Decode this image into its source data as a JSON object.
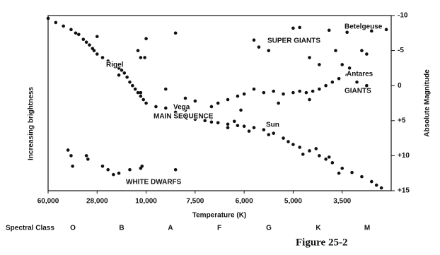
{
  "chart_data": {
    "type": "scatter",
    "xlabel": "Temperature (K)",
    "ylabel": "Increasing brightness",
    "y2label": "Absolute Magnitude",
    "color": "#111111",
    "xlim": [
      60000,
      2500
    ],
    "xticks": [
      {
        "value": 60000,
        "label": "60,000"
      },
      {
        "value": 28000,
        "label": "28,000"
      },
      {
        "value": 10000,
        "label": "10,000"
      },
      {
        "value": 7500,
        "label": "7,500"
      },
      {
        "value": 6000,
        "label": "6,000"
      },
      {
        "value": 5000,
        "label": "5,000"
      },
      {
        "value": 3500,
        "label": "3,500"
      }
    ],
    "ylim": [
      15,
      -10
    ],
    "yticks": [
      -10,
      -5,
      0,
      {
        "value": 5,
        "label": "+5"
      },
      {
        "value": 10,
        "label": "+10"
      },
      {
        "value": 15,
        "label": "+15"
      }
    ],
    "annotations": [
      "Betelgeuse",
      "SUPER GIANTS",
      "Rigel",
      "Antares",
      "GIANTS",
      "Vega",
      "MAIN SEQUENCE",
      "Sun",
      "WHITE DWARFS"
    ],
    "x": [
      60000,
      55000,
      50000,
      45000,
      42000,
      40000,
      37000,
      35000,
      33000,
      31000,
      30000,
      28000,
      26000,
      24000,
      22000,
      20000,
      19000,
      18000,
      17000,
      16000,
      15000,
      14000,
      13000,
      12000,
      11000,
      10000,
      9500,
      9000,
      8500,
      8000,
      7500,
      7200,
      7000,
      6800,
      6500,
      6200,
      6000,
      5800,
      5600,
      5400,
      5200,
      5100,
      5000,
      4800,
      4500,
      4200,
      4000,
      3800,
      3500,
      3300,
      3100,
      2900,
      2800,
      2700,
      6500,
      5500,
      4700,
      4300,
      3900,
      3600,
      8000,
      12000,
      20000,
      7000,
      6300,
      5900,
      7000,
      6800,
      6500,
      6200,
      6000,
      5800,
      5600,
      5400,
      5200,
      5000,
      4800,
      4600,
      4400,
      4200,
      4000,
      3800,
      3600,
      3400,
      3200,
      3000,
      4500,
      5300,
      6100,
      28000,
      10000,
      8500,
      13000,
      12000,
      10500,
      5000,
      4800,
      3900,
      3400,
      2900,
      2600,
      5800,
      5700,
      5500,
      4500,
      4200,
      3700,
      3100,
      3000,
      3350,
      3500,
      9000,
      8000,
      7500,
      47000,
      45000,
      44000,
      35000,
      34000,
      26000,
      24000,
      22000,
      20000,
      16000,
      12000,
      11500,
      8500
    ],
    "y": [
      -9.6,
      -9,
      -8.5,
      -8,
      -7.5,
      -7.3,
      -6.6,
      -6.2,
      -5.8,
      -5.3,
      -5,
      -4.5,
      -4,
      -3.5,
      -3,
      -2.5,
      -2.2,
      -1.8,
      -1.2,
      -0.5,
      0,
      0.5,
      1,
      1.5,
      2,
      2.5,
      3,
      3.2,
      3.8,
      4.2,
      4.8,
      5,
      5.2,
      5.3,
      5.5,
      5.7,
      5.8,
      6,
      6.3,
      6.8,
      7.5,
      8,
      8.4,
      8.8,
      9.3,
      10,
      10.5,
      11,
      11.8,
      12.4,
      13,
      13.7,
      14.2,
      14.6,
      6,
      7,
      9.8,
      9,
      10.2,
      12.5,
      3.5,
      1,
      -1.5,
      4.6,
      5.1,
      6.5,
      3,
      2.5,
      2,
      1.5,
      1.2,
      0.5,
      1,
      0.8,
      1.2,
      1,
      0.8,
      1,
      0.8,
      0.5,
      0,
      -0.5,
      -1,
      -1.5,
      -0.5,
      0,
      2,
      2.5,
      3.5,
      -7,
      -6.7,
      -7.5,
      -5,
      -4,
      -4,
      -8.2,
      -8.3,
      -7.9,
      -7.6,
      -7.8,
      -8,
      -6.5,
      -5.5,
      -5,
      -4,
      -3,
      -5,
      -5,
      -4.5,
      -2.5,
      -3,
      0.5,
      1.8,
      2.2,
      9.2,
      10,
      11.5,
      10,
      10.5,
      11.5,
      12,
      12.7,
      12.5,
      12,
      11.8,
      11.5,
      12
    ],
    "spectral_label": "Spectral Class",
    "spectral_classes": [
      "O",
      "B",
      "A",
      "F",
      "G",
      "K",
      "M"
    ],
    "figure_caption": "Figure 25-2"
  }
}
